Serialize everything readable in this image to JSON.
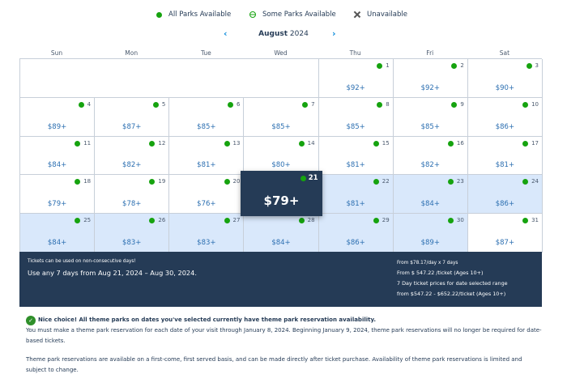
{
  "legend": {
    "all": "All Parks Available",
    "some": "Some Parks Available",
    "none": "Unavailable"
  },
  "nav": {
    "month": "August",
    "year": "2024",
    "prev_icon": "chevron-left-icon",
    "next_icon": "chevron-right-icon"
  },
  "weekdays": [
    "Sun",
    "Mon",
    "Tue",
    "Wed",
    "Thu",
    "Fri",
    "Sat"
  ],
  "days": [
    {
      "day": "1",
      "price": "$92+",
      "selected": false
    },
    {
      "day": "2",
      "price": "$92+",
      "selected": false
    },
    {
      "day": "3",
      "price": "$90+",
      "selected": false
    },
    {
      "day": "4",
      "price": "$89+",
      "selected": false
    },
    {
      "day": "5",
      "price": "$87+",
      "selected": false
    },
    {
      "day": "6",
      "price": "$85+",
      "selected": false
    },
    {
      "day": "7",
      "price": "$85+",
      "selected": false
    },
    {
      "day": "8",
      "price": "$85+",
      "selected": false
    },
    {
      "day": "9",
      "price": "$85+",
      "selected": false
    },
    {
      "day": "10",
      "price": "$86+",
      "selected": false
    },
    {
      "day": "11",
      "price": "$84+",
      "selected": false
    },
    {
      "day": "12",
      "price": "$82+",
      "selected": false
    },
    {
      "day": "13",
      "price": "$81+",
      "selected": false
    },
    {
      "day": "14",
      "price": "$80+",
      "selected": false
    },
    {
      "day": "15",
      "price": "$81+",
      "selected": false
    },
    {
      "day": "16",
      "price": "$82+",
      "selected": false
    },
    {
      "day": "17",
      "price": "$81+",
      "selected": false
    },
    {
      "day": "18",
      "price": "$79+",
      "selected": false
    },
    {
      "day": "19",
      "price": "$78+",
      "selected": false
    },
    {
      "day": "20",
      "price": "$76+",
      "selected": false
    },
    {
      "day": "21",
      "price": "$79+",
      "selected": true
    },
    {
      "day": "22",
      "price": "$81+",
      "selected": true
    },
    {
      "day": "23",
      "price": "$84+",
      "selected": true
    },
    {
      "day": "24",
      "price": "$86+",
      "selected": true
    },
    {
      "day": "25",
      "price": "$84+",
      "selected": true
    },
    {
      "day": "26",
      "price": "$83+",
      "selected": true
    },
    {
      "day": "27",
      "price": "$83+",
      "selected": true
    },
    {
      "day": "28",
      "price": "$84+",
      "selected": true
    },
    {
      "day": "29",
      "price": "$86+",
      "selected": true
    },
    {
      "day": "30",
      "price": "$89+",
      "selected": true
    },
    {
      "day": "31",
      "price": "$87+",
      "selected": false
    }
  ],
  "selected_day": {
    "day": "21",
    "price": "$79+"
  },
  "summary": {
    "note": "Tickets can be used on non-consecutive days!",
    "range": "Use any 7 days from Aug 21, 2024 – Aug 30, 2024.",
    "per_day": "From $78.17/day x 7 days",
    "from_price": "From $ 547.22 /ticket (Ages 10+)",
    "range_label": "7 Day ticket prices for date selected range",
    "range_price": "from $547.22 - $652.22/ticket (Ages 10+)"
  },
  "message": {
    "headline": "Nice choice! All theme parks on dates you've selected currently have theme park reservation availability.",
    "p1": "You must make a theme park reservation for each date of your visit through January 8, 2024. Beginning January 9, 2024, theme park reservations will no longer be required for date-based tickets.",
    "p2": "Theme park reservations are available on a first-come, first served basis, and can be made directly after ticket purchase. Availability of theme park reservations is limited and subject to change."
  },
  "colors": {
    "available": "#16a30f",
    "selected_range": "#d9e8fb",
    "dark_panel": "#253b56",
    "price_text": "#2c6fb1"
  }
}
